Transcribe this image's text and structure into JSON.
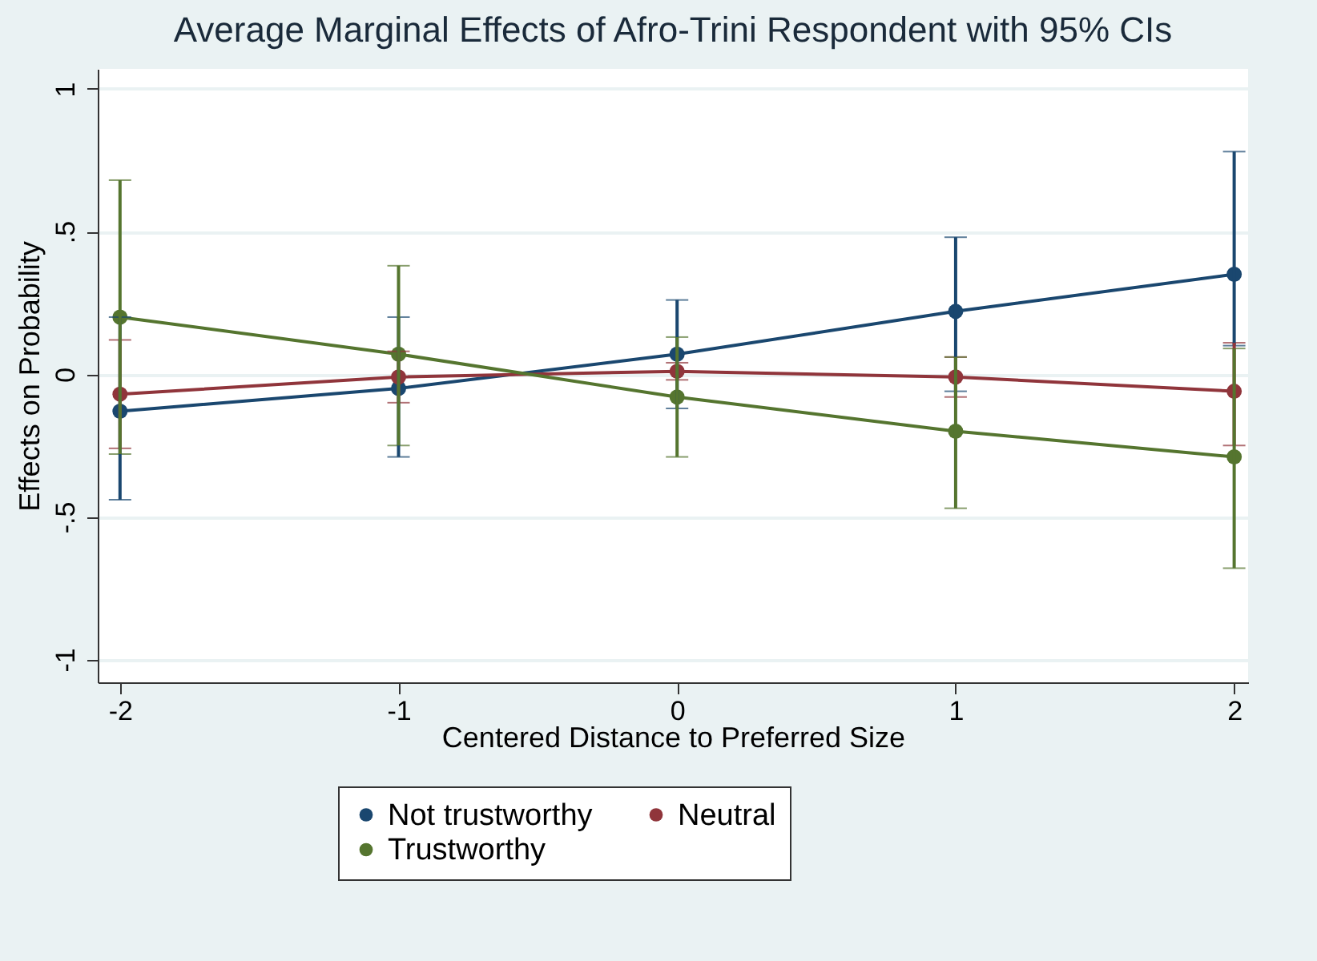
{
  "chart_data": {
    "type": "line",
    "title": "Average Marginal Effects of Afro-Trini Respondent with 95% CIs",
    "xlabel": "Centered Distance to Preferred Size",
    "ylabel": "Effects on Probability",
    "x": [
      -2,
      -1,
      0,
      1,
      2
    ],
    "xlim": [
      -2.08,
      2.05
    ],
    "xticks": [
      -2,
      -1,
      0,
      1,
      2
    ],
    "ylim": [
      -1.08,
      1.07
    ],
    "yticks": [
      {
        "value": -1,
        "label": "-1"
      },
      {
        "value": -0.5,
        "label": "-.5"
      },
      0,
      {
        "value": 0.5,
        "label": ".5"
      },
      1
    ],
    "grid": "y",
    "legend": "bottom",
    "marker": "circle",
    "line_style": "solid",
    "series": [
      {
        "name": "Not trustworthy",
        "color": "#1a476f",
        "values": [
          -0.13,
          -0.05,
          0.07,
          0.22,
          0.35
        ],
        "errors": [
          [
            -0.44,
            0.2
          ],
          [
            -0.29,
            0.2
          ],
          [
            -0.12,
            0.26
          ],
          [
            -0.06,
            0.48
          ],
          [
            0.1,
            0.78
          ]
        ]
      },
      {
        "name": "Neutral",
        "color": "#90353b",
        "values": [
          -0.07,
          -0.01,
          0.01,
          -0.01,
          -0.06
        ],
        "errors": [
          [
            -0.26,
            0.12
          ],
          [
            -0.1,
            0.08
          ],
          [
            -0.02,
            0.04
          ],
          [
            -0.08,
            0.06
          ],
          [
            -0.25,
            0.11
          ]
        ]
      },
      {
        "name": "Trustworthy",
        "color": "#55752f",
        "values": [
          0.2,
          0.07,
          -0.08,
          -0.2,
          -0.29
        ],
        "errors": [
          [
            -0.28,
            0.68
          ],
          [
            -0.25,
            0.38
          ],
          [
            -0.29,
            0.13
          ],
          [
            -0.47,
            0.06
          ],
          [
            -0.68,
            0.09
          ]
        ]
      }
    ]
  }
}
